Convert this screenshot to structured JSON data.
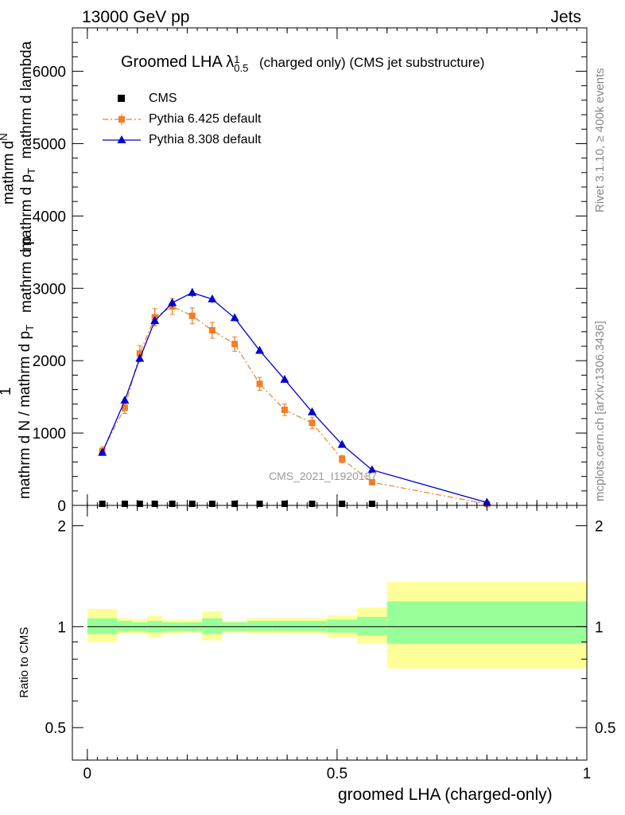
{
  "header": {
    "energy": "13000 GeV pp",
    "process": "Jets"
  },
  "side": {
    "rivet": "Rivet 3.1.10, ≥ 400k events",
    "mcplots": "mcplots.cern.ch [arXiv:1306.3436]"
  },
  "chart_data": {
    "type": "line",
    "title_main": "Groomed LHA",
    "title_symbol": "λ",
    "title_sup": "1",
    "title_sub": "0.5",
    "title_rest": "(charged only) (CMS jet substructure)",
    "watermark": "CMS_2021_I1920187",
    "ylabel_numerator": "1",
    "ylabel_denominator": "mathrm d N / mathrm d p",
    "ylabel_top": "mathrm d",
    "ylabel_top2": "N",
    "ylabel_part2": "mathrm d p",
    "ylabel_sub": "T",
    "ylabel_part3": "mathrm d lambda",
    "ylabel_overlap": "mathrm d p",
    "xlabel": "groomed LHA (charged-only)",
    "ratio_ylabel": "Ratio to CMS",
    "xlim": [
      -0.03,
      1.0
    ],
    "ylim": [
      0,
      6600
    ],
    "ratio_ylim": [
      0.4,
      2.3
    ],
    "ratio_log": true,
    "x_ticks": [
      "0",
      "0.5",
      "1"
    ],
    "y_ticks": [
      "0",
      "1000",
      "2000",
      "3000",
      "4000",
      "5000",
      "6000"
    ],
    "ratio_ticks": [
      "0.5",
      "1",
      "2"
    ],
    "legend": [
      {
        "name": "CMS",
        "color": "#000000",
        "marker": "square"
      },
      {
        "name": "Pythia 6.425 default",
        "color": "#f07f25",
        "marker": "square",
        "dash": "dashdot"
      },
      {
        "name": "Pythia 8.308 default",
        "color": "#0000cc",
        "marker": "triangle"
      }
    ],
    "cms_x": [
      0.03,
      0.075,
      0.105,
      0.135,
      0.17,
      0.21,
      0.25,
      0.295,
      0.345,
      0.395,
      0.45,
      0.51,
      0.57
    ],
    "series": [
      {
        "name": "Pythia 6.425 default",
        "x": [
          0.03,
          0.075,
          0.105,
          0.135,
          0.17,
          0.21,
          0.25,
          0.295,
          0.345,
          0.395,
          0.45,
          0.51,
          0.57,
          0.8
        ],
        "y": [
          750,
          1350,
          2100,
          2600,
          2750,
          2620,
          2420,
          2230,
          1680,
          1320,
          1140,
          640,
          320,
          20
        ],
        "err": [
          60,
          80,
          110,
          120,
          110,
          110,
          110,
          100,
          90,
          80,
          80,
          50,
          30,
          10
        ]
      },
      {
        "name": "Pythia 8.308 default",
        "x": [
          0.03,
          0.075,
          0.105,
          0.135,
          0.17,
          0.21,
          0.25,
          0.295,
          0.345,
          0.395,
          0.45,
          0.51,
          0.57,
          0.8
        ],
        "y": [
          730,
          1450,
          2030,
          2550,
          2800,
          2940,
          2850,
          2590,
          2140,
          1740,
          1290,
          840,
          490,
          40
        ],
        "err": [
          30,
          40,
          50,
          60,
          60,
          60,
          50,
          40,
          30,
          30,
          30,
          20,
          20,
          10
        ]
      }
    ],
    "ratio_bands": [
      {
        "x0": 0.0,
        "x1": 0.06,
        "in": [
          0.95,
          1.06
        ],
        "out": [
          0.9,
          1.13
        ]
      },
      {
        "x0": 0.06,
        "x1": 0.09,
        "in": [
          0.97,
          1.04
        ],
        "out": [
          0.95,
          1.06
        ]
      },
      {
        "x0": 0.09,
        "x1": 0.12,
        "in": [
          0.97,
          1.03
        ],
        "out": [
          0.95,
          1.05
        ]
      },
      {
        "x0": 0.12,
        "x1": 0.15,
        "in": [
          0.96,
          1.04
        ],
        "out": [
          0.93,
          1.08
        ]
      },
      {
        "x0": 0.15,
        "x1": 0.19,
        "in": [
          0.97,
          1.03
        ],
        "out": [
          0.95,
          1.05
        ]
      },
      {
        "x0": 0.19,
        "x1": 0.23,
        "in": [
          0.97,
          1.03
        ],
        "out": [
          0.96,
          1.05
        ]
      },
      {
        "x0": 0.23,
        "x1": 0.27,
        "in": [
          0.95,
          1.06
        ],
        "out": [
          0.91,
          1.11
        ]
      },
      {
        "x0": 0.27,
        "x1": 0.32,
        "in": [
          0.97,
          1.03
        ],
        "out": [
          0.96,
          1.04
        ]
      },
      {
        "x0": 0.32,
        "x1": 0.37,
        "in": [
          0.97,
          1.04
        ],
        "out": [
          0.95,
          1.06
        ]
      },
      {
        "x0": 0.37,
        "x1": 0.42,
        "in": [
          0.97,
          1.04
        ],
        "out": [
          0.95,
          1.06
        ]
      },
      {
        "x0": 0.42,
        "x1": 0.48,
        "in": [
          0.97,
          1.04
        ],
        "out": [
          0.95,
          1.06
        ]
      },
      {
        "x0": 0.48,
        "x1": 0.54,
        "in": [
          0.96,
          1.05
        ],
        "out": [
          0.93,
          1.08
        ]
      },
      {
        "x0": 0.54,
        "x1": 0.6,
        "in": [
          0.94,
          1.07
        ],
        "out": [
          0.89,
          1.14
        ]
      },
      {
        "x0": 0.6,
        "x1": 1.0,
        "in": [
          0.89,
          1.19
        ],
        "out": [
          0.75,
          1.36
        ]
      }
    ],
    "colors": {
      "inner": "#99ff99",
      "outer": "#ffff99",
      "p6": "#f07f25",
      "p8": "#0000cc",
      "data": "#000000"
    }
  }
}
